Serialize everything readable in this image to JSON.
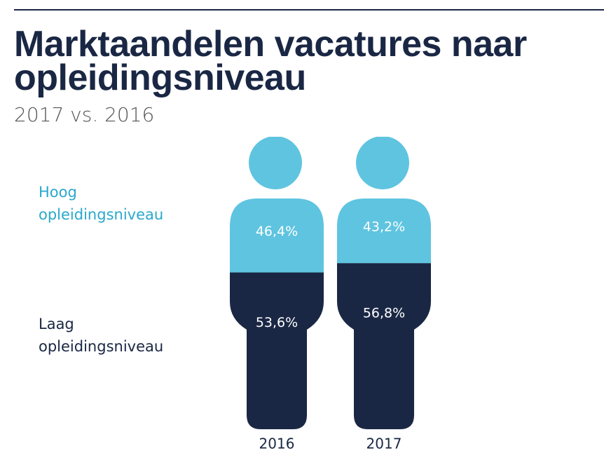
{
  "chart_data": {
    "type": "bar",
    "stacked": true,
    "title": "Marktaandelen vacatures naar opleidingsniveau",
    "subtitle": "2017 vs. 2016",
    "categories": [
      "2016",
      "2017"
    ],
    "series": [
      {
        "name": "Laag opleidingsniveau",
        "color": "#1a2744",
        "values": [
          53.6,
          56.8
        ],
        "value_labels": [
          "53,6%",
          "56,8%"
        ]
      },
      {
        "name": "Hoog opleidingsniveau",
        "color": "#5fc4e0",
        "values": [
          46.4,
          43.2
        ],
        "value_labels": [
          "46,4%",
          "43,2%"
        ]
      }
    ],
    "ylim": [
      0,
      100
    ]
  }
}
